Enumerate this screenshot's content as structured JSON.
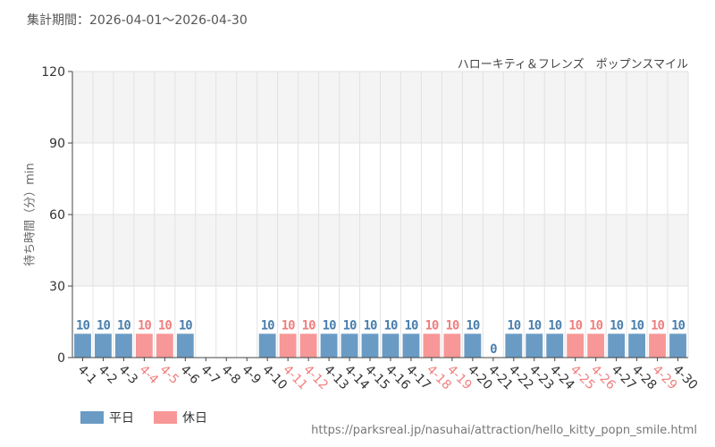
{
  "header": {
    "period_label": "集計期間：2026-04-01～2026-04-30",
    "attraction_name": "ハローキティ＆フレンズ　ポップンスマイル"
  },
  "legend": {
    "weekday_label": "平日",
    "holiday_label": "休日"
  },
  "footer": {
    "source_url": "https://parksreal.jp/nasuhai/attraction/hello_kitty_popn_smile.html"
  },
  "colors": {
    "weekday": "#6a9bc4",
    "holiday": "#f79797",
    "weekday_text": "#4a7fae",
    "holiday_text": "#f07f7f",
    "band": "#f4f4f4",
    "grid": "#e2e2e2",
    "axis": "#444444"
  },
  "chart_data": {
    "type": "bar",
    "title": "",
    "xlabel": "",
    "ylabel": "待ち時間（分）min",
    "ylim": [
      0,
      120
    ],
    "yticks": [
      0,
      30,
      60,
      90,
      120
    ],
    "grid": true,
    "legend_placement": "bottom-left",
    "categories": [
      "4-1",
      "4-2",
      "4-3",
      "4-4",
      "4-5",
      "4-6",
      "4-7",
      "4-8",
      "4-9",
      "4-10",
      "4-11",
      "4-12",
      "4-13",
      "4-14",
      "4-15",
      "4-16",
      "4-17",
      "4-18",
      "4-19",
      "4-20",
      "4-21",
      "4-22",
      "4-23",
      "4-24",
      "4-25",
      "4-26",
      "4-27",
      "4-28",
      "4-29",
      "4-30"
    ],
    "values": [
      10,
      10,
      10,
      10,
      10,
      10,
      null,
      null,
      null,
      10,
      10,
      10,
      10,
      10,
      10,
      10,
      10,
      10,
      10,
      10,
      0,
      10,
      10,
      10,
      10,
      10,
      10,
      10,
      10,
      10
    ],
    "day_type": [
      "weekday",
      "weekday",
      "weekday",
      "holiday",
      "holiday",
      "weekday",
      "weekday",
      "weekday",
      "weekday",
      "weekday",
      "holiday",
      "holiday",
      "weekday",
      "weekday",
      "weekday",
      "weekday",
      "weekday",
      "holiday",
      "holiday",
      "weekday",
      "weekday",
      "weekday",
      "weekday",
      "weekday",
      "holiday",
      "holiday",
      "weekday",
      "weekday",
      "holiday",
      "weekday"
    ]
  }
}
